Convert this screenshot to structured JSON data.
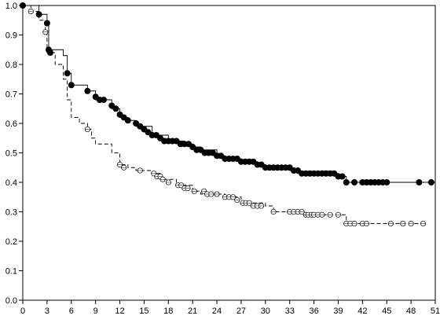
{
  "chart_data": {
    "type": "line",
    "title": "",
    "xlabel": "",
    "ylabel": "",
    "xlim": [
      0,
      51
    ],
    "ylim": [
      0,
      1.0
    ],
    "x_ticks": [
      "0",
      "3",
      "6",
      "9",
      "12",
      "15",
      "18",
      "21",
      "24",
      "27",
      "30",
      "33",
      "36",
      "39",
      "42",
      "45",
      "48",
      "51"
    ],
    "y_ticks": [
      "0.0",
      "0.1",
      "0.2",
      "0.3",
      "0.4",
      "0.5",
      "0.6",
      "0.7",
      "0.8",
      "0.9",
      "1.0"
    ],
    "grid": false,
    "legend": "none",
    "series": [
      {
        "line_style": "solid",
        "marker": "filled-circle",
        "color": "#000000",
        "steps": [
          [
            0,
            1.0
          ],
          [
            2,
            0.97
          ],
          [
            3,
            0.94
          ],
          [
            3.2,
            0.85
          ],
          [
            5,
            0.83
          ],
          [
            5.5,
            0.77
          ],
          [
            6,
            0.73
          ],
          [
            8,
            0.71
          ],
          [
            9,
            0.68
          ],
          [
            11,
            0.65
          ],
          [
            12,
            0.62
          ],
          [
            13,
            0.61
          ],
          [
            14,
            0.59
          ],
          [
            16,
            0.56
          ],
          [
            18,
            0.54
          ],
          [
            20,
            0.53
          ],
          [
            21,
            0.52
          ],
          [
            22,
            0.51
          ],
          [
            24,
            0.49
          ],
          [
            25,
            0.48
          ],
          [
            27,
            0.47
          ],
          [
            29,
            0.46
          ],
          [
            30,
            0.45
          ],
          [
            33,
            0.44
          ],
          [
            34,
            0.43
          ],
          [
            36,
            0.43
          ],
          [
            39,
            0.42
          ],
          [
            40,
            0.4
          ],
          [
            41,
            0.4
          ],
          [
            51,
            0.4
          ]
        ],
        "markers": [
          [
            0,
            1.0
          ],
          [
            2,
            0.97
          ],
          [
            3,
            0.94
          ],
          [
            3.2,
            0.85
          ],
          [
            3.4,
            0.84
          ],
          [
            5.5,
            0.77
          ],
          [
            6,
            0.73
          ],
          [
            8,
            0.71
          ],
          [
            9,
            0.69
          ],
          [
            9.5,
            0.68
          ],
          [
            10,
            0.68
          ],
          [
            11,
            0.66
          ],
          [
            11.5,
            0.65
          ],
          [
            12,
            0.63
          ],
          [
            12.5,
            0.62
          ],
          [
            13,
            0.61
          ],
          [
            14,
            0.6
          ],
          [
            14.5,
            0.59
          ],
          [
            15,
            0.58
          ],
          [
            15.5,
            0.57
          ],
          [
            16,
            0.56
          ],
          [
            16.5,
            0.56
          ],
          [
            17,
            0.55
          ],
          [
            17.5,
            0.54
          ],
          [
            18,
            0.54
          ],
          [
            18.5,
            0.54
          ],
          [
            19,
            0.54
          ],
          [
            19.5,
            0.53
          ],
          [
            20,
            0.53
          ],
          [
            20.5,
            0.53
          ],
          [
            21,
            0.52
          ],
          [
            21.5,
            0.51
          ],
          [
            22,
            0.51
          ],
          [
            22.5,
            0.5
          ],
          [
            23,
            0.5
          ],
          [
            23.5,
            0.5
          ],
          [
            24,
            0.49
          ],
          [
            24.5,
            0.49
          ],
          [
            25,
            0.48
          ],
          [
            25.5,
            0.48
          ],
          [
            26,
            0.48
          ],
          [
            26.5,
            0.48
          ],
          [
            27,
            0.47
          ],
          [
            27.5,
            0.47
          ],
          [
            28,
            0.47
          ],
          [
            28.5,
            0.47
          ],
          [
            29,
            0.46
          ],
          [
            29.5,
            0.46
          ],
          [
            30,
            0.45
          ],
          [
            30.5,
            0.45
          ],
          [
            31,
            0.45
          ],
          [
            31.5,
            0.45
          ],
          [
            32,
            0.45
          ],
          [
            32.5,
            0.45
          ],
          [
            33,
            0.45
          ],
          [
            33.5,
            0.44
          ],
          [
            34,
            0.44
          ],
          [
            34.5,
            0.43
          ],
          [
            35,
            0.43
          ],
          [
            35.5,
            0.43
          ],
          [
            36,
            0.43
          ],
          [
            36.5,
            0.43
          ],
          [
            37,
            0.43
          ],
          [
            37.5,
            0.43
          ],
          [
            38,
            0.43
          ],
          [
            38.5,
            0.43
          ],
          [
            39,
            0.42
          ],
          [
            39.5,
            0.42
          ],
          [
            40,
            0.4
          ],
          [
            41,
            0.4
          ],
          [
            42,
            0.4
          ],
          [
            42.5,
            0.4
          ],
          [
            43,
            0.4
          ],
          [
            43.5,
            0.4
          ],
          [
            44,
            0.4
          ],
          [
            44.5,
            0.4
          ],
          [
            45,
            0.4
          ],
          [
            49,
            0.4
          ],
          [
            50.5,
            0.4
          ]
        ]
      },
      {
        "line_style": "dashed",
        "marker": "open-circle",
        "color": "#000000",
        "steps": [
          [
            0,
            1.0
          ],
          [
            1,
            0.98
          ],
          [
            2,
            0.95
          ],
          [
            2.8,
            0.91
          ],
          [
            3,
            0.84
          ],
          [
            4,
            0.8
          ],
          [
            5,
            0.75
          ],
          [
            5.5,
            0.68
          ],
          [
            6,
            0.62
          ],
          [
            7,
            0.6
          ],
          [
            8,
            0.58
          ],
          [
            8.5,
            0.55
          ],
          [
            9,
            0.53
          ],
          [
            11,
            0.5
          ],
          [
            12,
            0.46
          ],
          [
            13,
            0.45
          ],
          [
            14,
            0.44
          ],
          [
            16,
            0.43
          ],
          [
            17,
            0.41
          ],
          [
            19,
            0.39
          ],
          [
            21,
            0.37
          ],
          [
            22,
            0.36
          ],
          [
            25,
            0.35
          ],
          [
            27,
            0.33
          ],
          [
            30,
            0.32
          ],
          [
            31,
            0.3
          ],
          [
            33,
            0.3
          ],
          [
            35,
            0.29
          ],
          [
            38,
            0.29
          ],
          [
            40,
            0.26
          ],
          [
            49,
            0.26
          ]
        ],
        "markers": [
          [
            1,
            0.98
          ],
          [
            2.8,
            0.91
          ],
          [
            8,
            0.58
          ],
          [
            12,
            0.46
          ],
          [
            12.5,
            0.45
          ],
          [
            14.5,
            0.44
          ],
          [
            16.2,
            0.43
          ],
          [
            16.6,
            0.42
          ],
          [
            17,
            0.42
          ],
          [
            17.3,
            0.41
          ],
          [
            18,
            0.4
          ],
          [
            19.2,
            0.39
          ],
          [
            19.6,
            0.39
          ],
          [
            20,
            0.38
          ],
          [
            20.4,
            0.38
          ],
          [
            21.2,
            0.37
          ],
          [
            22.4,
            0.37
          ],
          [
            22.8,
            0.36
          ],
          [
            23.3,
            0.36
          ],
          [
            24,
            0.36
          ],
          [
            25,
            0.35
          ],
          [
            25.5,
            0.35
          ],
          [
            26,
            0.35
          ],
          [
            26.5,
            0.34
          ],
          [
            27.2,
            0.33
          ],
          [
            27.6,
            0.33
          ],
          [
            28,
            0.33
          ],
          [
            28.5,
            0.32
          ],
          [
            29,
            0.32
          ],
          [
            29.5,
            0.32
          ],
          [
            31,
            0.3
          ],
          [
            33,
            0.3
          ],
          [
            33.5,
            0.3
          ],
          [
            34,
            0.3
          ],
          [
            34.5,
            0.3
          ],
          [
            35,
            0.29
          ],
          [
            35.3,
            0.29
          ],
          [
            35.7,
            0.29
          ],
          [
            36,
            0.29
          ],
          [
            36.5,
            0.29
          ],
          [
            37,
            0.29
          ],
          [
            38,
            0.29
          ],
          [
            39,
            0.29
          ],
          [
            40,
            0.26
          ],
          [
            40.5,
            0.26
          ],
          [
            41,
            0.26
          ],
          [
            42,
            0.26
          ],
          [
            42.5,
            0.26
          ],
          [
            45.5,
            0.26
          ],
          [
            47,
            0.26
          ],
          [
            48,
            0.26
          ],
          [
            49.5,
            0.26
          ]
        ]
      }
    ]
  }
}
